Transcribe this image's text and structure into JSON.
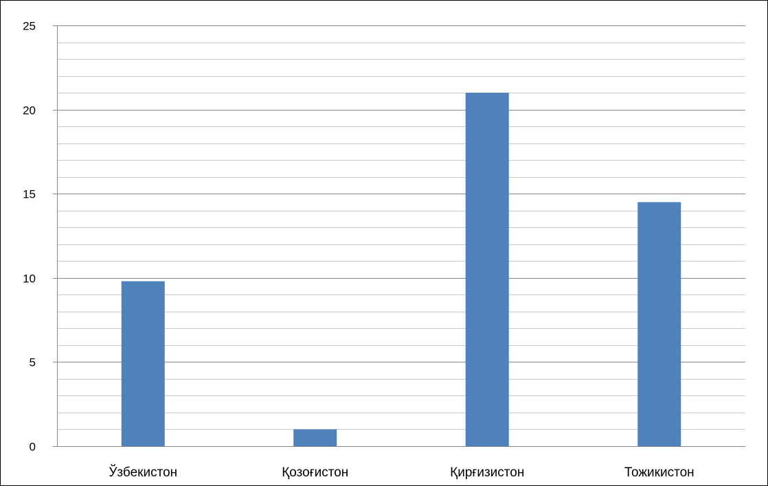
{
  "chart_data": {
    "type": "bar",
    "categories": [
      "Ўзбекистон",
      "Қозоғистон",
      "Қирғизистон",
      "Тожикистон"
    ],
    "values": [
      9.8,
      1.0,
      21.0,
      14.5
    ],
    "ylim": [
      0,
      25
    ],
    "yticks": [
      "0",
      "5",
      "10",
      "15",
      "20",
      "25"
    ],
    "ytick_values": [
      0,
      5,
      10,
      15,
      20,
      25
    ],
    "minor_grid_step": 1,
    "grid": true,
    "legend": "none",
    "colors": {
      "bar": "#4F81BD",
      "major_grid": "#878787",
      "minor_grid": "#C8C8C8",
      "axis": "#878787"
    }
  }
}
